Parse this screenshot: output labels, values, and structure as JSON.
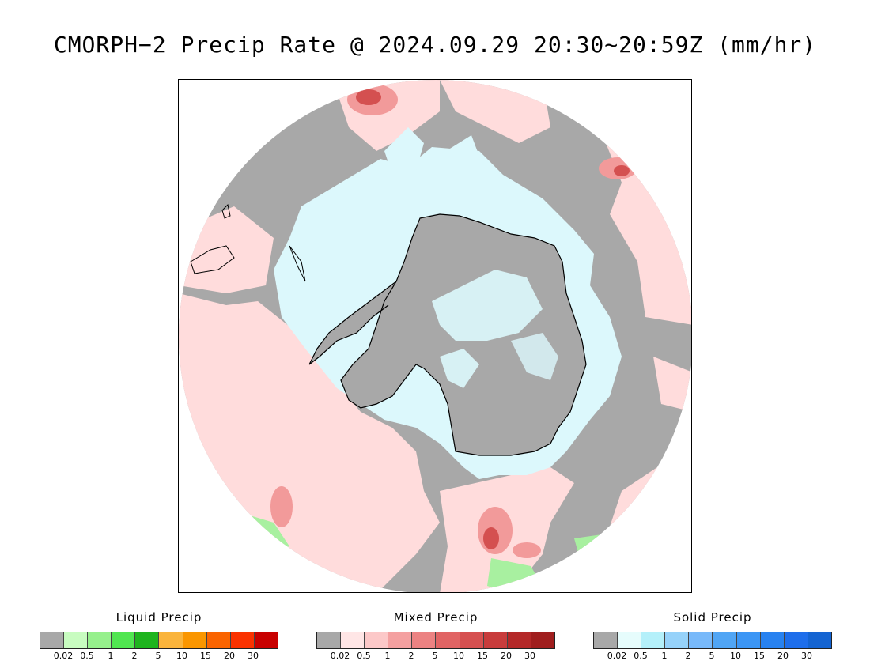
{
  "title": "CMORPH−2 Precip Rate @ 2024.09.29 20:30~20:59Z (mm/hr)",
  "map": {
    "projection": "south-polar-stereographic",
    "region": "Antarctica / Southern Ocean",
    "colors": {
      "no_precip": "#a8a8a8",
      "mixed_light": "#ffdcdc",
      "mixed_mid": "#f29a9a",
      "mixed_heavy": "#d45050",
      "solid_light": "#dcf8fc",
      "liquid_light": "#a8f0a0",
      "coast": "#000000"
    }
  },
  "legends": [
    {
      "title": "Liquid Precip",
      "colors": [
        "#a8a8a8",
        "#c8fcc0",
        "#96f08c",
        "#50e650",
        "#1eb41e",
        "#fab43c",
        "#fa9600",
        "#fa6400",
        "#fa3200",
        "#c80000"
      ],
      "ticks": [
        "0.02",
        "0.5",
        "1",
        "2",
        "5",
        "10",
        "15",
        "20",
        "30"
      ]
    },
    {
      "title": "Mixed Precip",
      "colors": [
        "#a8a8a8",
        "#ffe6e6",
        "#fcc8c8",
        "#f4a0a0",
        "#ec8282",
        "#e16464",
        "#d65050",
        "#c83c3c",
        "#b42828",
        "#a01e1e"
      ],
      "ticks": [
        "0.02",
        "0.5",
        "1",
        "2",
        "5",
        "10",
        "15",
        "20",
        "30"
      ]
    },
    {
      "title": "Solid Precip",
      "colors": [
        "#a8a8a8",
        "#e6fcfc",
        "#b4f0fa",
        "#96d2fa",
        "#78b9fa",
        "#50a5f5",
        "#3c96f5",
        "#2882f0",
        "#1e6eeb",
        "#1464d2"
      ],
      "ticks": [
        "0.02",
        "0.5",
        "1",
        "2",
        "5",
        "10",
        "15",
        "20",
        "30"
      ]
    }
  ]
}
